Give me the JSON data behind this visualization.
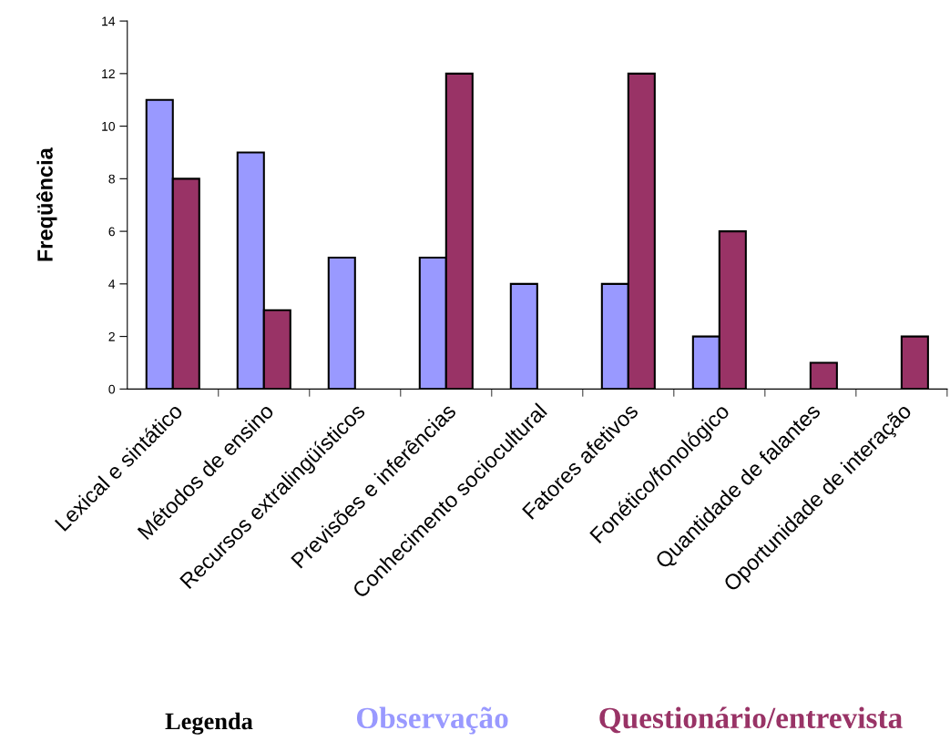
{
  "chart_data": {
    "type": "bar",
    "ylabel": "Freqüência",
    "legend_title": "Legenda",
    "legend": "bottom",
    "grid": false,
    "categories": [
      "Lexical e sintático",
      "Métodos de ensino",
      "Recursos extralingüísticos",
      "Previsões e inferências",
      "Conhecimento sociocultural",
      "Fatores afetivos",
      "Fonético/fonológico",
      "Quantidade de falantes",
      "Oportunidade de interação"
    ],
    "series": [
      {
        "name": "Observação",
        "color": "#9999ff",
        "values": [
          11,
          9,
          5,
          5,
          4,
          4,
          2,
          null,
          null
        ]
      },
      {
        "name": "Questionário/entrevista",
        "color": "#993366",
        "values": [
          8,
          3,
          null,
          12,
          null,
          12,
          6,
          1,
          2
        ]
      }
    ],
    "ylim": [
      0,
      14
    ],
    "yticks": [
      0,
      2,
      4,
      6,
      8,
      10,
      12,
      14
    ]
  }
}
